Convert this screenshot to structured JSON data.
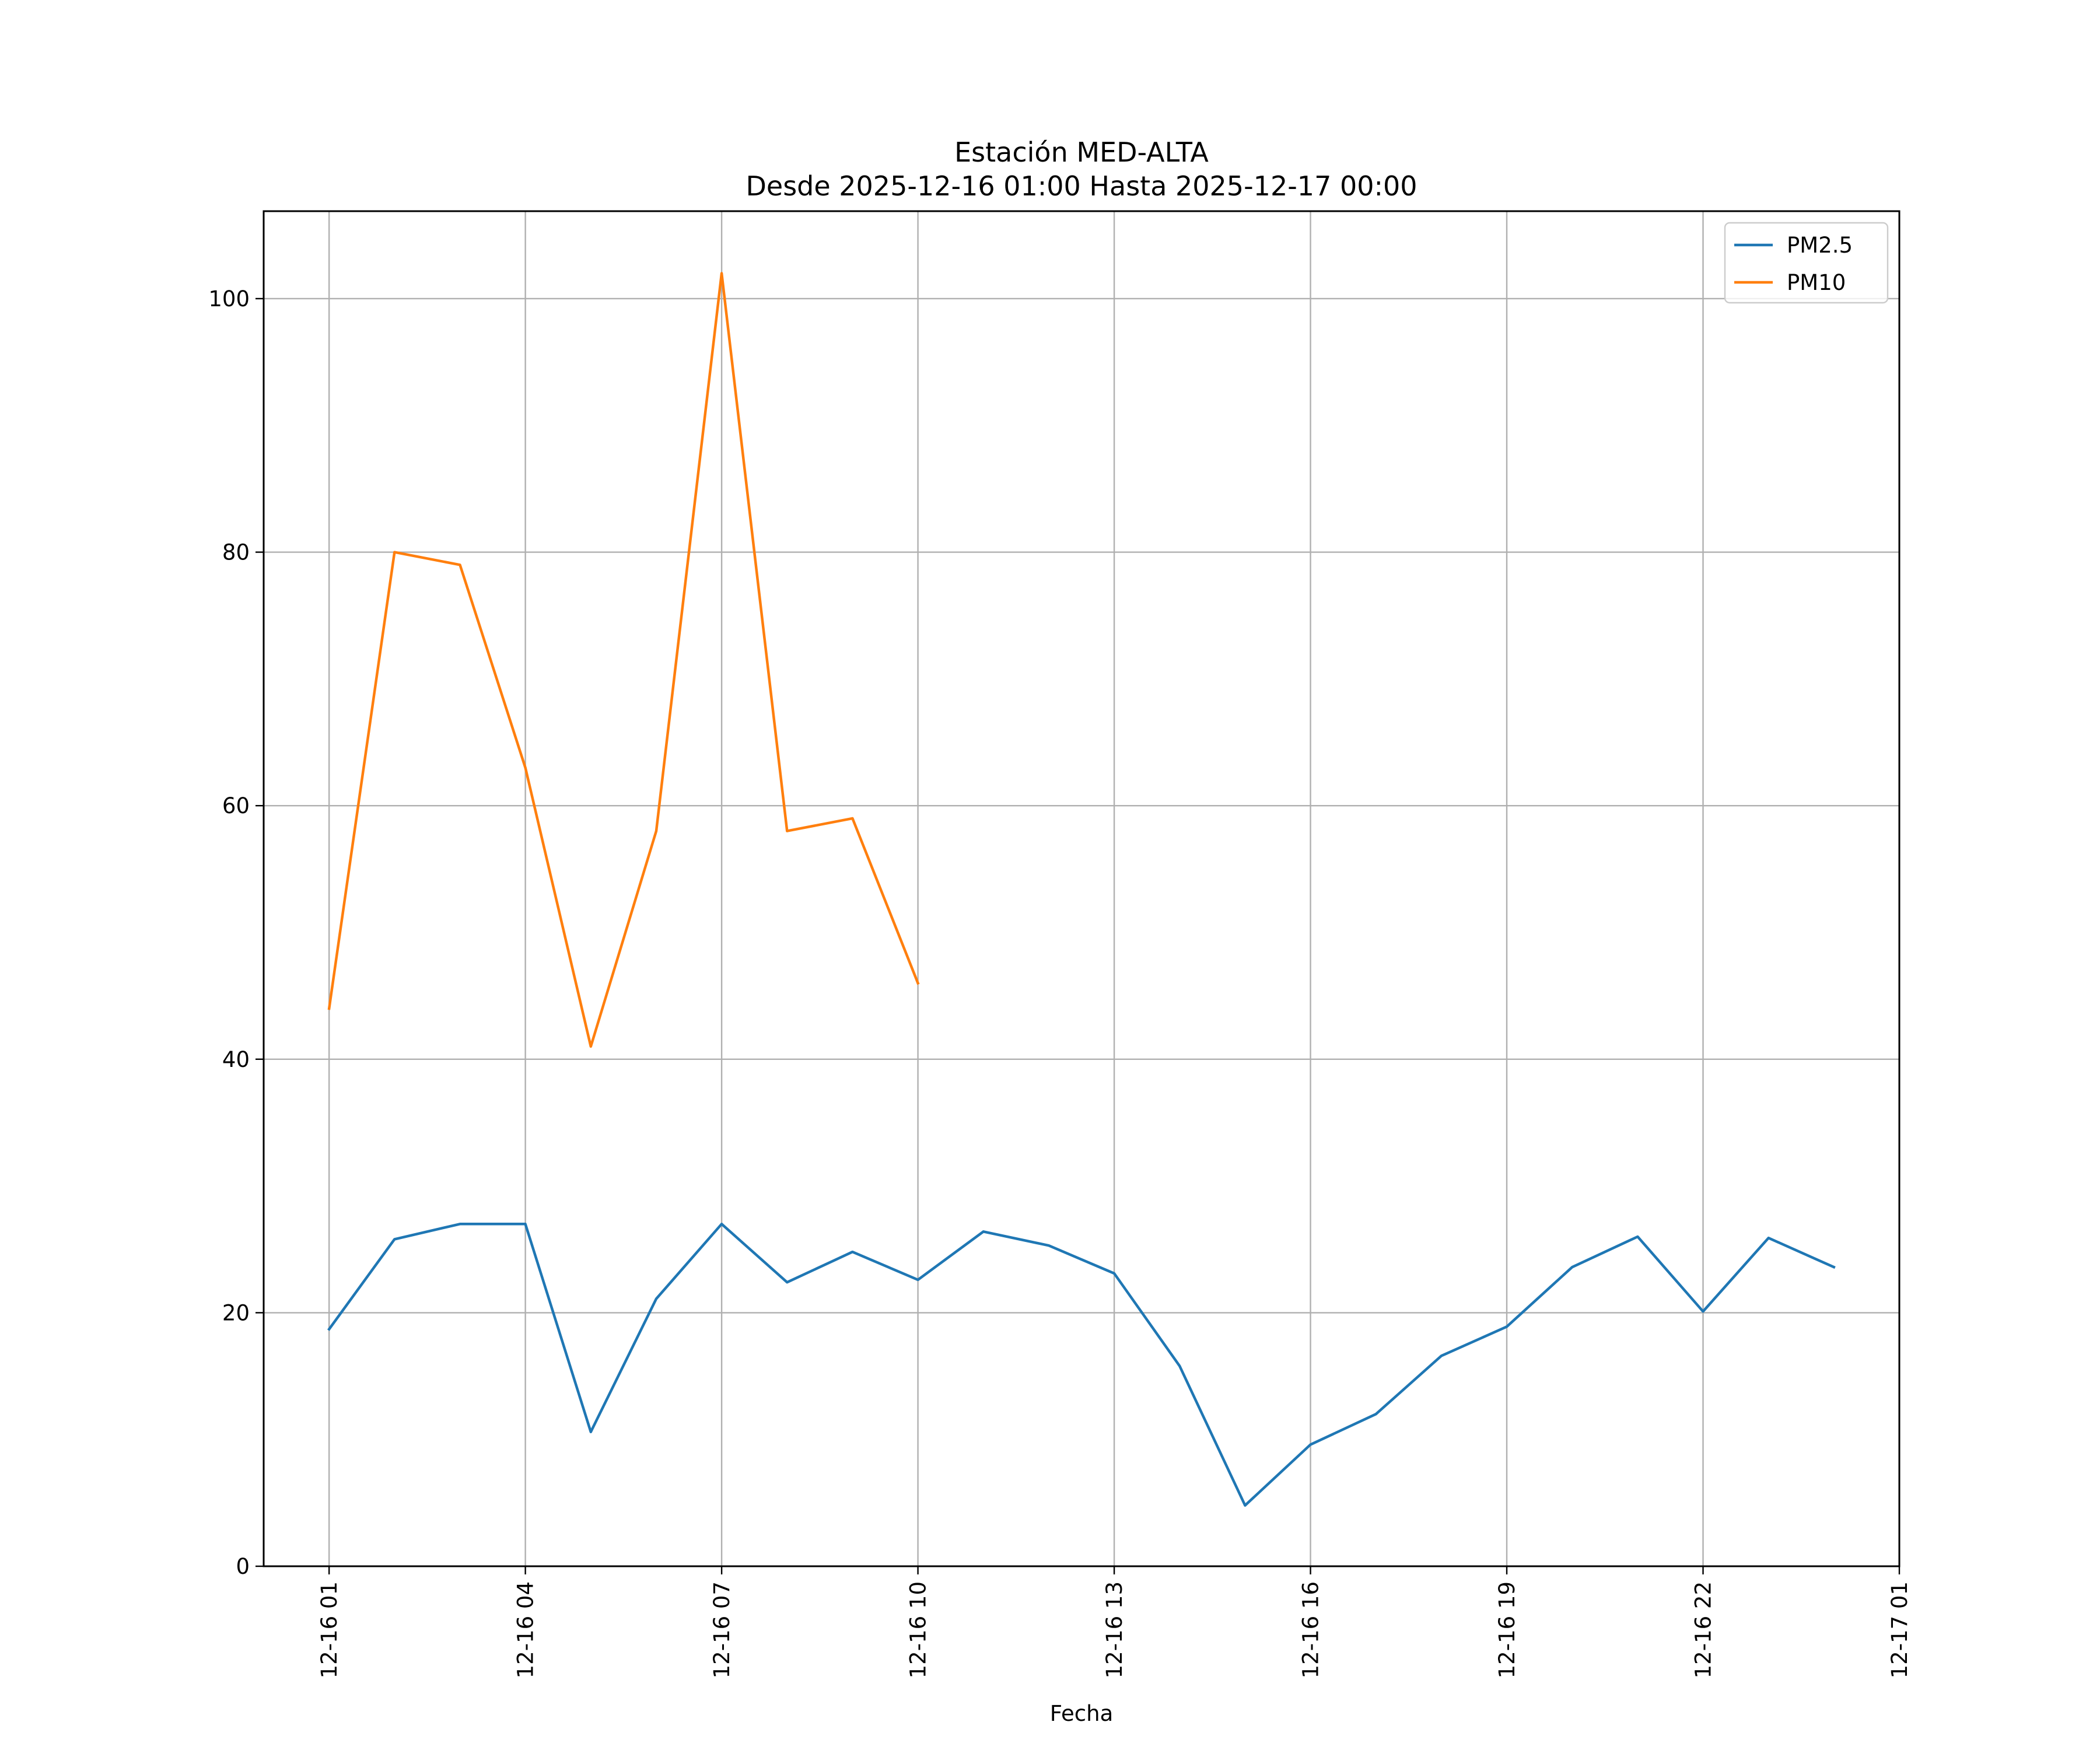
{
  "chart_data": {
    "type": "line",
    "title": "Estación MED-ALTA",
    "subtitle": "Desde 2025-12-16 01:00 Hasta 2025-12-17 00:00",
    "xlabel": "Fecha",
    "ylabel": "",
    "x": [
      "2025-12-16 01:00",
      "2025-12-16 02:00",
      "2025-12-16 03:00",
      "2025-12-16 04:00",
      "2025-12-16 05:00",
      "2025-12-16 06:00",
      "2025-12-16 07:00",
      "2025-12-16 08:00",
      "2025-12-16 09:00",
      "2025-12-16 10:00",
      "2025-12-16 11:00",
      "2025-12-16 12:00",
      "2025-12-16 13:00",
      "2025-12-16 14:00",
      "2025-12-16 15:00",
      "2025-12-16 16:00",
      "2025-12-16 17:00",
      "2025-12-16 18:00",
      "2025-12-16 19:00",
      "2025-12-16 20:00",
      "2025-12-16 21:00",
      "2025-12-16 22:00",
      "2025-12-16 23:00",
      "2025-12-17 00:00"
    ],
    "series": [
      {
        "name": "PM2.5",
        "color": "#1f77b4",
        "values": [
          18.7,
          25.8,
          27.0,
          27.0,
          10.6,
          21.1,
          27.0,
          22.4,
          24.8,
          22.6,
          26.4,
          25.3,
          23.1,
          15.8,
          4.8,
          9.6,
          12.0,
          16.6,
          18.9,
          23.6,
          26.0,
          20.1,
          25.9,
          23.6
        ]
      },
      {
        "name": "PM10",
        "color": "#ff7f0e",
        "values": [
          44,
          80,
          79,
          63,
          41,
          58,
          102,
          58,
          59,
          46,
          null,
          null,
          null,
          null,
          null,
          null,
          null,
          null,
          null,
          null,
          null,
          null,
          null,
          null
        ]
      }
    ],
    "xlim": [
      "2025-12-16 00:00",
      "2025-12-17 01:00"
    ],
    "ylim": [
      0,
      106.9
    ],
    "xticks": [
      "2025-12-16 01:00",
      "2025-12-16 04:00",
      "2025-12-16 07:00",
      "2025-12-16 10:00",
      "2025-12-16 13:00",
      "2025-12-16 16:00",
      "2025-12-16 19:00",
      "2025-12-16 22:00",
      "2025-12-17 01:00"
    ],
    "xtick_labels": [
      "12-16 01",
      "12-16 04",
      "12-16 07",
      "12-16 10",
      "12-16 13",
      "12-16 16",
      "12-16 19",
      "12-16 22",
      "12-17 01"
    ],
    "yticks": [
      0,
      20,
      40,
      60,
      80,
      100
    ],
    "ytick_labels": [
      "0",
      "20",
      "40",
      "60",
      "80",
      "100"
    ],
    "grid": true,
    "legend_position": "top-right"
  }
}
